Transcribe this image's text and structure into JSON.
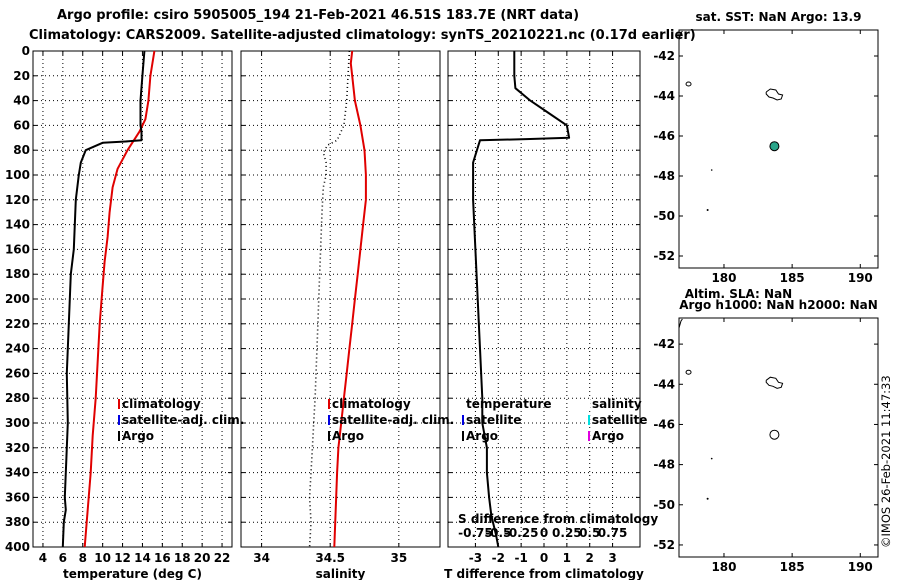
{
  "title_line1": "Argo profile: csiro 5905005_194 21-Feb-2021 46.51S 183.7E (NRT data)",
  "title_line2": "Climatology: CARS2009. Satellite-adjusted climatology: synTS_20210221.nc (0.17d earlier)",
  "imos_stamp": "©IMOS 26-Feb-2021 11:47:33",
  "colors": {
    "climatology": "#e00000",
    "satellite": "#0000e0",
    "argo": "#000000",
    "satellite_sal": "#00e0e0",
    "argo_sal": "#e000e0",
    "marker": "#2aa58a"
  },
  "chart_data": [
    {
      "id": "temp",
      "type": "line",
      "xlabel": "temperature (deg C)",
      "ylabel": "",
      "xlim": [
        3,
        23
      ],
      "ylim": [
        0,
        400
      ],
      "y_inverted": true,
      "xticks": [
        4,
        6,
        8,
        10,
        12,
        14,
        16,
        18,
        20,
        22
      ],
      "xtick_labels": [
        "4",
        "6",
        "8",
        "10",
        "12",
        "14",
        "16",
        "18",
        "20",
        "22"
      ],
      "yticks": [
        0,
        20,
        40,
        60,
        80,
        100,
        120,
        140,
        160,
        180,
        200,
        220,
        240,
        260,
        280,
        300,
        320,
        340,
        360,
        380,
        400
      ],
      "ytick_labels": [
        "0",
        "20",
        "40",
        "60",
        "80",
        "100",
        "120",
        "140",
        "160",
        "180",
        "200",
        "220",
        "240",
        "260",
        "280",
        "300",
        "320",
        "340",
        "360",
        "380",
        "400"
      ],
      "legend": [
        "climatology",
        "satellite-adj. clim.",
        "Argo"
      ],
      "series": [
        {
          "name": "climatology",
          "style": "solid",
          "x": [
            15.2,
            15.0,
            14.8,
            14.6,
            14.3,
            13.7,
            12.5,
            11.5,
            11.0,
            10.7,
            10.5,
            10.2,
            10.0,
            9.7,
            9.5,
            9.3,
            9.0,
            8.8,
            8.6,
            8.4,
            8.2
          ],
          "y": [
            0,
            10,
            20,
            40,
            55,
            65,
            80,
            95,
            110,
            130,
            150,
            170,
            190,
            220,
            250,
            280,
            310,
            340,
            360,
            380,
            400
          ]
        },
        {
          "name": "Argo",
          "style": "solid",
          "x": [
            14.2,
            14.0,
            13.8,
            13.8,
            13.9,
            13.9,
            12.3,
            10.0,
            8.3,
            7.8,
            7.6,
            7.3,
            7.2,
            7.1,
            6.8,
            6.7,
            6.6,
            6.4,
            6.5,
            6.3,
            6.2,
            6.3,
            6.1,
            6.0
          ],
          "y": [
            0,
            20,
            40,
            60,
            65,
            72,
            73,
            74,
            80,
            90,
            100,
            120,
            140,
            160,
            180,
            200,
            220,
            260,
            300,
            340,
            360,
            370,
            380,
            400
          ]
        }
      ]
    },
    {
      "id": "sal",
      "type": "line",
      "xlabel": "salinity",
      "ylabel": "",
      "xlim": [
        33.85,
        35.3
      ],
      "ylim": [
        0,
        400
      ],
      "y_inverted": true,
      "xticks": [
        34,
        34.5,
        35
      ],
      "xtick_labels": [
        "34",
        "34.5",
        "35"
      ],
      "yticks": [
        0,
        20,
        40,
        60,
        80,
        100,
        120,
        140,
        160,
        180,
        200,
        220,
        240,
        260,
        280,
        300,
        320,
        340,
        360,
        380,
        400
      ],
      "legend": [
        "climatology",
        "satellite-adj. clim.",
        "Argo"
      ],
      "series": [
        {
          "name": "climatology",
          "style": "solid",
          "x": [
            34.66,
            34.65,
            34.66,
            34.68,
            34.72,
            34.75,
            34.76,
            34.76,
            34.74,
            34.72,
            34.7,
            34.68,
            34.66,
            34.64,
            34.62,
            34.6,
            34.58,
            34.56,
            34.55,
            34.54,
            34.53
          ],
          "y": [
            0,
            10,
            20,
            40,
            60,
            80,
            100,
            120,
            140,
            160,
            180,
            200,
            220,
            240,
            260,
            280,
            300,
            320,
            340,
            370,
            400
          ]
        },
        {
          "name": "Argo",
          "style": "dotted",
          "x": [
            34.64,
            34.63,
            34.62,
            34.6,
            34.55,
            34.48,
            34.45,
            34.47,
            34.47,
            34.45,
            34.44,
            34.43,
            34.42,
            34.41,
            34.4,
            34.39,
            34.38,
            34.37,
            34.36,
            34.35,
            34.36,
            34.35
          ],
          "y": [
            0,
            20,
            40,
            60,
            72,
            76,
            82,
            90,
            100,
            110,
            130,
            160,
            190,
            220,
            250,
            280,
            300,
            320,
            340,
            360,
            380,
            400
          ]
        }
      ]
    },
    {
      "id": "diff",
      "type": "line",
      "xlabel": "T difference from climatology",
      "top_label": "S difference from climatology",
      "xlim": [
        -4.2,
        4.2
      ],
      "ylim": [
        0,
        400
      ],
      "y_inverted": true,
      "xticks": [
        -3,
        -2,
        -1,
        0,
        1,
        2,
        3
      ],
      "xtick_labels": [
        "-3",
        "-2",
        "-1",
        "0",
        "1",
        "2",
        "3"
      ],
      "top_ticks": [
        -0.75,
        -0.5,
        -0.25,
        0,
        0.25,
        0.5,
        0.75
      ],
      "top_tick_labels": [
        "-0.75",
        "-0.5",
        "-0.25",
        "0",
        "0.25",
        "0.5",
        "0.75"
      ],
      "yticks": [
        0,
        20,
        40,
        60,
        80,
        100,
        120,
        140,
        160,
        180,
        200,
        220,
        240,
        260,
        280,
        300,
        320,
        340,
        360,
        380,
        400
      ],
      "legend_temperature": [
        "temperature",
        "satellite",
        "Argo"
      ],
      "legend_salinity": [
        "salinity",
        "satellite",
        "Argo"
      ],
      "series": [
        {
          "name": "T difference Argo",
          "style": "solid",
          "x": [
            -1.3,
            -1.3,
            -1.25,
            -0.6,
            0.2,
            1.0,
            1.1,
            -0.6,
            -2.8,
            -2.9,
            -3.1,
            -3.1,
            -3.0,
            -2.9,
            -2.8,
            -2.7,
            -2.7,
            -2.5,
            -2.5,
            -2.4,
            -2.3,
            -2.1,
            -2.0
          ],
          "y": [
            0,
            20,
            30,
            40,
            50,
            60,
            70,
            71,
            72,
            78,
            90,
            120,
            160,
            200,
            240,
            280,
            300,
            320,
            340,
            360,
            375,
            390,
            400
          ]
        }
      ]
    }
  ],
  "maps": [
    {
      "id": "map-sst",
      "title": "sat. SST: NaN Argo: 13.9",
      "bottom_label": "Altim. SLA: NaN",
      "xlim": [
        176.7,
        191.3
      ],
      "ylim": [
        -52.6,
        -40.7
      ],
      "xticks": [
        180,
        185,
        190
      ],
      "xtick_labels": [
        "180",
        "185",
        "190"
      ],
      "yticks": [
        -42,
        -44,
        -46,
        -48,
        -50,
        -52
      ],
      "ytick_labels": [
        "-42",
        "-44",
        "-46",
        "-48",
        "-50",
        "-52"
      ],
      "argo_position": {
        "lon": 183.7,
        "lat": -46.51
      },
      "marker_filled": true
    },
    {
      "id": "map-sla",
      "title": "Argo h1000: NaN h2000: NaN",
      "bottom_label": "",
      "xlim": [
        176.7,
        191.3
      ],
      "ylim": [
        -52.6,
        -40.7
      ],
      "xticks": [
        180,
        185,
        190
      ],
      "xtick_labels": [
        "180",
        "185",
        "190"
      ],
      "yticks": [
        -42,
        -44,
        -46,
        -48,
        -50,
        -52
      ],
      "ytick_labels": [
        "-42",
        "-44",
        "-46",
        "-48",
        "-50",
        "-52"
      ],
      "argo_position": {
        "lon": 183.7,
        "lat": -46.51
      },
      "marker_filled": false
    }
  ]
}
